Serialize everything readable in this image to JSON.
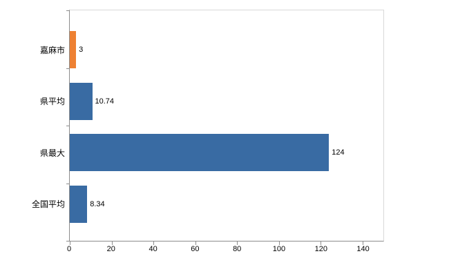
{
  "chart_data": {
    "type": "bar",
    "orientation": "horizontal",
    "title": "",
    "xlabel": "",
    "ylabel": "",
    "categories": [
      "嘉麻市",
      "県平均",
      "県最大",
      "全国平均"
    ],
    "values": [
      3,
      10.74,
      124,
      8.34
    ],
    "value_labels": [
      "3",
      "10.74",
      "124",
      "8.34"
    ],
    "bar_colors": [
      "#ee8133",
      "#396ba3",
      "#396ba3",
      "#396ba3"
    ],
    "x_ticks": [
      0,
      20,
      40,
      60,
      80,
      100,
      120,
      140
    ],
    "xlim": [
      0,
      150
    ],
    "grid": false,
    "legend": false
  },
  "colors": {
    "highlight": "#ee8133",
    "primary": "#396ba3",
    "axis": "#8c8c8c",
    "plot_border": "#d9d9d9",
    "text": "#000000"
  }
}
